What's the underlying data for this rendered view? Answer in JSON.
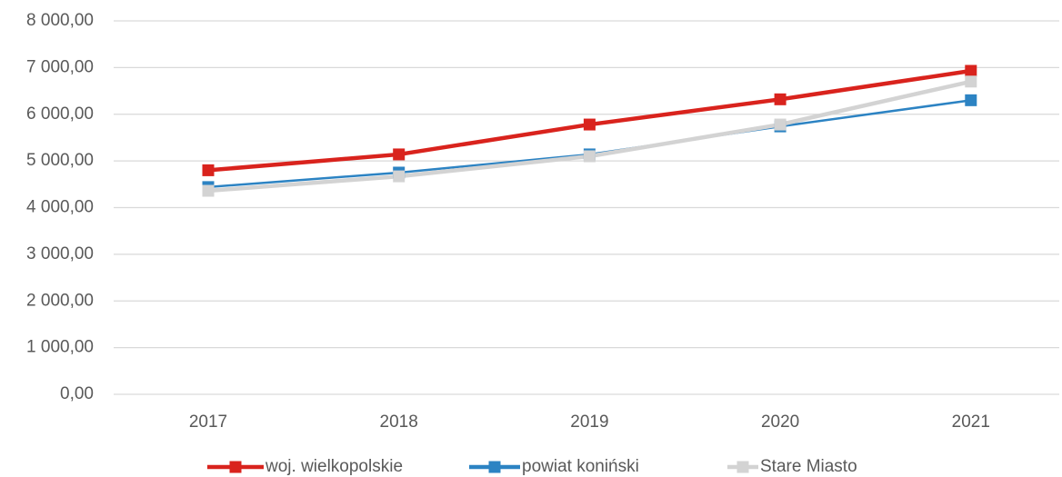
{
  "chart_data": {
    "type": "line",
    "categories": [
      "2017",
      "2018",
      "2019",
      "2020",
      "2021"
    ],
    "series": [
      {
        "name": "woj. wielkopolskie",
        "color": "#d9231d",
        "values": [
          4800,
          5140,
          5780,
          6320,
          6930
        ]
      },
      {
        "name": "powiat koniński",
        "color": "#2c83c3",
        "values": [
          4440,
          4750,
          5140,
          5740,
          6300
        ]
      },
      {
        "name": "Stare Miasto",
        "color": "#d3d3d3",
        "values": [
          4360,
          4670,
          5100,
          5780,
          6700
        ]
      }
    ],
    "ylim": [
      0,
      8000
    ],
    "yticks": [
      {
        "value": 0,
        "label": "0,00"
      },
      {
        "value": 1000,
        "label": "1 000,00"
      },
      {
        "value": 2000,
        "label": "2 000,00"
      },
      {
        "value": 3000,
        "label": "3 000,00"
      },
      {
        "value": 4000,
        "label": "4 000,00"
      },
      {
        "value": 5000,
        "label": "5 000,00"
      },
      {
        "value": 6000,
        "label": "6 000,00"
      },
      {
        "value": 7000,
        "label": "7 000,00"
      },
      {
        "value": 8000,
        "label": "8 000,00"
      }
    ],
    "grid": true,
    "legend": "bottom"
  }
}
